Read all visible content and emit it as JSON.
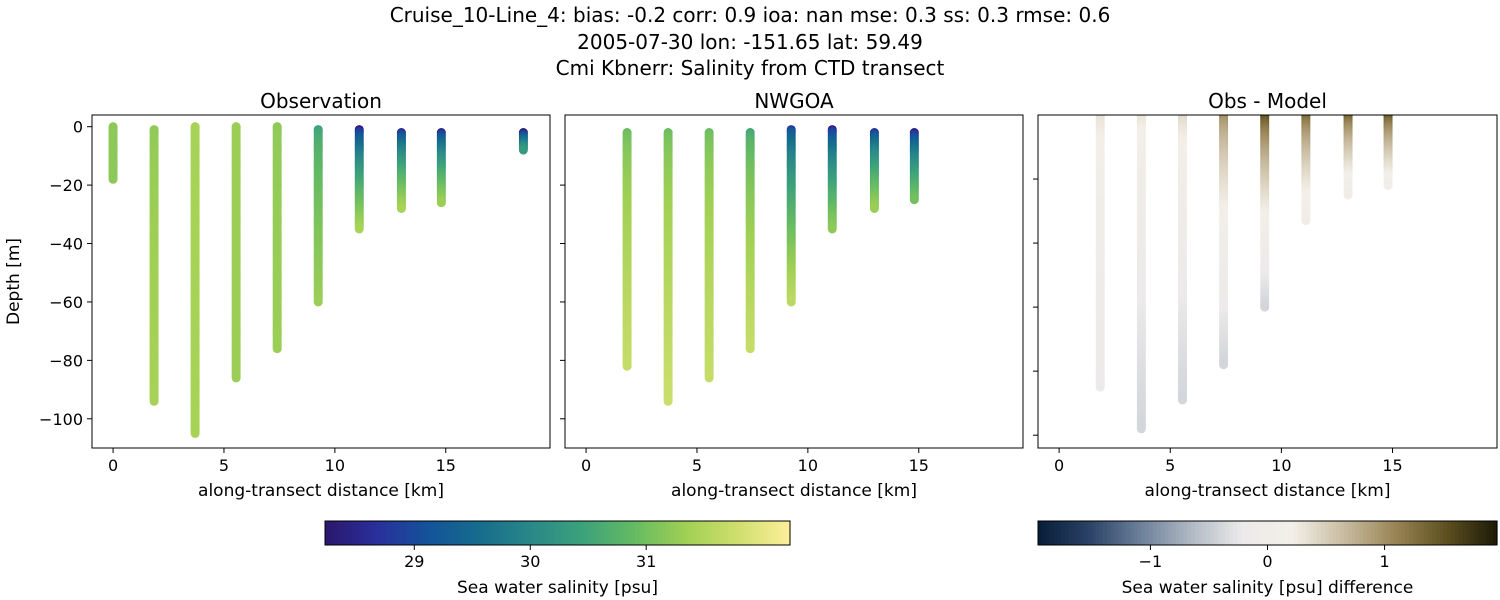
{
  "title_lines": [
    "Cruise_10-Line_4: bias: -0.2  corr: 0.9  ioa: nan  mse: 0.3  ss: 0.3  rmse: 0.6",
    "2005-07-30 lon: -151.65 lat: 59.49",
    "Cmi Kbnerr: Salinity from CTD transect"
  ],
  "chart_data": [
    {
      "type": "scatter",
      "title": "Observation",
      "xlabel": "along-transect distance [km]",
      "ylabel": "Depth [m]",
      "xlim": [
        -0.95,
        19.7
      ],
      "ylim": [
        -110,
        4
      ],
      "xticks": [
        0,
        5,
        10,
        15
      ],
      "yticks": [
        0,
        -20,
        -40,
        -60,
        -80,
        -100
      ],
      "colorbar": "salinity",
      "profiles": [
        {
          "x": 0,
          "top": 0,
          "bottom": -18,
          "s_top": 31.2,
          "s_bottom": 31.2
        },
        {
          "x": 1.85,
          "top": -1,
          "bottom": -94,
          "s_top": 31.2,
          "s_bottom": 31.4
        },
        {
          "x": 3.7,
          "top": 0,
          "bottom": -105,
          "s_top": 31.4,
          "s_bottom": 31.4
        },
        {
          "x": 5.55,
          "top": 0,
          "bottom": -86,
          "s_top": 31.3,
          "s_bottom": 31.3
        },
        {
          "x": 7.4,
          "top": 0,
          "bottom": -76,
          "s_top": 31.2,
          "s_bottom": 31.3
        },
        {
          "x": 9.25,
          "top": -1,
          "bottom": -60,
          "s_top": 30.4,
          "s_bottom": 31.3
        },
        {
          "x": 11.1,
          "top": -1,
          "bottom": -35,
          "s_top": 28.3,
          "s_bottom": 31.4
        },
        {
          "x": 13,
          "top": -2,
          "bottom": -28,
          "s_top": 28.5,
          "s_bottom": 31.4
        },
        {
          "x": 14.8,
          "top": -2,
          "bottom": -26,
          "s_top": 28.4,
          "s_bottom": 31.3
        },
        {
          "x": 18.5,
          "top": -2,
          "bottom": -8,
          "s_top": 28.2,
          "s_bottom": 30.3
        }
      ]
    },
    {
      "type": "scatter",
      "title": "NWGOA",
      "xlabel": "along-transect distance [km]",
      "xlim": [
        -0.95,
        19.7
      ],
      "ylim": [
        -110,
        4
      ],
      "xticks": [
        0,
        5,
        10,
        15
      ],
      "colorbar": "salinity",
      "profiles": [
        {
          "x": 1.85,
          "top": -2,
          "bottom": -82,
          "s_top": 30.9,
          "s_bottom": 31.7
        },
        {
          "x": 3.7,
          "top": -2,
          "bottom": -94,
          "s_top": 30.9,
          "s_bottom": 31.75
        },
        {
          "x": 5.55,
          "top": -2,
          "bottom": -86,
          "s_top": 30.9,
          "s_bottom": 31.7
        },
        {
          "x": 7.4,
          "top": -2,
          "bottom": -76,
          "s_top": 30.5,
          "s_bottom": 31.7
        },
        {
          "x": 9.25,
          "top": -1,
          "bottom": -60,
          "s_top": 28.8,
          "s_bottom": 31.6
        },
        {
          "x": 11.1,
          "top": -1,
          "bottom": -35,
          "s_top": 28.4,
          "s_bottom": 31.2
        },
        {
          "x": 13,
          "top": -2,
          "bottom": -28,
          "s_top": 28.6,
          "s_bottom": 31.3
        },
        {
          "x": 14.8,
          "top": -2,
          "bottom": -25,
          "s_top": 28.3,
          "s_bottom": 31.0
        }
      ]
    },
    {
      "type": "scatter",
      "title": "Obs - Model",
      "xlabel": "along-transect distance [km]",
      "xlim": [
        -0.95,
        19.7
      ],
      "ylim": [
        -104,
        0
      ],
      "xticks": [
        0,
        5,
        10,
        15
      ],
      "colorbar": "difference",
      "profiles": [
        {
          "x": 1.85,
          "top": 0,
          "bottom": -85,
          "s_top": 0.4,
          "s_bottom": -0.2
        },
        {
          "x": 3.7,
          "top": 0,
          "bottom": -98,
          "s_top": 0.4,
          "s_bottom": -0.4
        },
        {
          "x": 5.55,
          "top": 0,
          "bottom": -89,
          "s_top": 0.5,
          "s_bottom": -0.4
        },
        {
          "x": 7.4,
          "top": 0,
          "bottom": -78,
          "s_top": 1.2,
          "s_bottom": -0.4
        },
        {
          "x": 9.25,
          "top": 0,
          "bottom": -60,
          "s_top": 1.8,
          "s_bottom": -0.4
        },
        {
          "x": 11.1,
          "top": 0,
          "bottom": -33,
          "s_top": 1.6,
          "s_bottom": 0.0
        },
        {
          "x": 13,
          "top": 0,
          "bottom": -25,
          "s_top": 1.7,
          "s_bottom": 0.0
        },
        {
          "x": 14.8,
          "top": 0,
          "bottom": -22,
          "s_top": 1.8,
          "s_bottom": 0.1
        }
      ]
    }
  ],
  "colorbars": {
    "salinity": {
      "label": "Sea water salinity [psu]",
      "range": [
        28.23,
        32.24
      ],
      "ticks": [
        29,
        30,
        31
      ],
      "cmap": "haline"
    },
    "difference": {
      "label": "Sea water salinity [psu] difference",
      "range": [
        -1.96,
        1.96
      ],
      "ticks": [
        -1,
        0,
        1
      ],
      "cmap": "diff"
    }
  }
}
